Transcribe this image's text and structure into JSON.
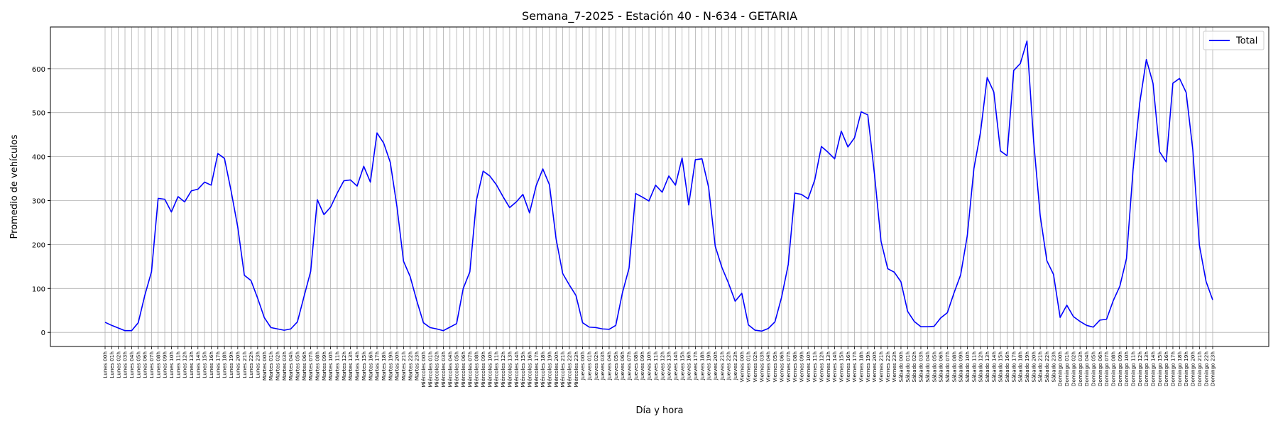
{
  "chart_data": {
    "type": "line",
    "title": "Semana_7-2025 - Estación 40 - N-634  - GETARIA",
    "xlabel": "Día y hora",
    "ylabel": "Promedio de vehículos",
    "ylim": [
      -32,
      695
    ],
    "yticks": [
      0,
      100,
      200,
      300,
      400,
      500,
      600
    ],
    "grid": true,
    "legend_position": "top-right",
    "categories": [
      "Lunes 00h",
      "Lunes 01h",
      "Lunes 02h",
      "Lunes 03h",
      "Lunes 04h",
      "Lunes 05h",
      "Lunes 06h",
      "Lunes 07h",
      "Lunes 08h",
      "Lunes 09h",
      "Lunes 10h",
      "Lunes 11h",
      "Lunes 12h",
      "Lunes 13h",
      "Lunes 14h",
      "Lunes 15h",
      "Lunes 16h",
      "Lunes 17h",
      "Lunes 18h",
      "Lunes 19h",
      "Lunes 20h",
      "Lunes 21h",
      "Lunes 22h",
      "Lunes 23h",
      "Martes 00h",
      "Martes 01h",
      "Martes 02h",
      "Martes 03h",
      "Martes 04h",
      "Martes 05h",
      "Martes 06h",
      "Martes 07h",
      "Martes 08h",
      "Martes 09h",
      "Martes 10h",
      "Martes 11h",
      "Martes 12h",
      "Martes 13h",
      "Martes 14h",
      "Martes 15h",
      "Martes 16h",
      "Martes 17h",
      "Martes 18h",
      "Martes 19h",
      "Martes 20h",
      "Martes 21h",
      "Martes 22h",
      "Martes 23h",
      "Miércoles 00h",
      "Miércoles 01h",
      "Miércoles 02h",
      "Miércoles 03h",
      "Miércoles 04h",
      "Miércoles 05h",
      "Miércoles 06h",
      "Miércoles 07h",
      "Miércoles 08h",
      "Miércoles 09h",
      "Miércoles 10h",
      "Miércoles 11h",
      "Miércoles 12h",
      "Miércoles 13h",
      "Miércoles 14h",
      "Miércoles 15h",
      "Miércoles 16h",
      "Miércoles 17h",
      "Miércoles 18h",
      "Miércoles 19h",
      "Miércoles 20h",
      "Miércoles 21h",
      "Miércoles 22h",
      "Miércoles 23h",
      "Jueves 00h",
      "Jueves 01h",
      "Jueves 02h",
      "Jueves 03h",
      "Jueves 04h",
      "Jueves 05h",
      "Jueves 06h",
      "Jueves 07h",
      "Jueves 08h",
      "Jueves 09h",
      "Jueves 10h",
      "Jueves 11h",
      "Jueves 12h",
      "Jueves 13h",
      "Jueves 14h",
      "Jueves 15h",
      "Jueves 16h",
      "Jueves 17h",
      "Jueves 18h",
      "Jueves 19h",
      "Jueves 20h",
      "Jueves 21h",
      "Jueves 22h",
      "Jueves 23h",
      "Viernes 00h",
      "Viernes 01h",
      "Viernes 02h",
      "Viernes 03h",
      "Viernes 04h",
      "Viernes 05h",
      "Viernes 06h",
      "Viernes 07h",
      "Viernes 08h",
      "Viernes 09h",
      "Viernes 10h",
      "Viernes 11h",
      "Viernes 12h",
      "Viernes 13h",
      "Viernes 14h",
      "Viernes 15h",
      "Viernes 16h",
      "Viernes 17h",
      "Viernes 18h",
      "Viernes 19h",
      "Viernes 20h",
      "Viernes 21h",
      "Viernes 22h",
      "Viernes 23h",
      "Sábado 00h",
      "Sábado 01h",
      "Sábado 02h",
      "Sábado 03h",
      "Sábado 04h",
      "Sábado 05h",
      "Sábado 06h",
      "Sábado 07h",
      "Sábado 08h",
      "Sábado 09h",
      "Sábado 10h",
      "Sábado 11h",
      "Sábado 12h",
      "Sábado 13h",
      "Sábado 14h",
      "Sábado 15h",
      "Sábado 16h",
      "Sábado 17h",
      "Sábado 18h",
      "Sábado 19h",
      "Sábado 20h",
      "Sábado 21h",
      "Sábado 22h",
      "Sábado 23h",
      "Domingo 00h",
      "Domingo 01h",
      "Domingo 02h",
      "Domingo 03h",
      "Domingo 04h",
      "Domingo 05h",
      "Domingo 06h",
      "Domingo 07h",
      "Domingo 08h",
      "Domingo 09h",
      "Domingo 10h",
      "Domingo 11h",
      "Domingo 12h",
      "Domingo 13h",
      "Domingo 14h",
      "Domingo 15h",
      "Domingo 16h",
      "Domingo 17h",
      "Domingo 18h",
      "Domingo 19h",
      "Domingo 20h",
      "Domingo 21h",
      "Domingo 22h",
      "Domingo 23h"
    ],
    "series": [
      {
        "name": "Total",
        "color": "#0000ff",
        "values": [
          23,
          16,
          10,
          4,
          4,
          22,
          85,
          138,
          305,
          303,
          274,
          309,
          297,
          322,
          326,
          342,
          335,
          407,
          396,
          322,
          240,
          130,
          118,
          78,
          34,
          11,
          8,
          5,
          8,
          24,
          82,
          139,
          302,
          268,
          285,
          317,
          345,
          347,
          333,
          378,
          342,
          454,
          431,
          387,
          287,
          162,
          127,
          72,
          22,
          11,
          8,
          4,
          12,
          20,
          100,
          138,
          301,
          367,
          356,
          336,
          309,
          284,
          297,
          314,
          272,
          334,
          372,
          336,
          213,
          134,
          108,
          84,
          22,
          12,
          11,
          8,
          7,
          16,
          90,
          146,
          316,
          308,
          299,
          335,
          319,
          356,
          335,
          397,
          290,
          393,
          395,
          330,
          196,
          148,
          112,
          71,
          89,
          17,
          5,
          3,
          9,
          24,
          80,
          154,
          317,
          314,
          304,
          347,
          423,
          410,
          395,
          458,
          422,
          443,
          502,
          495,
          361,
          207,
          145,
          137,
          115,
          48,
          25,
          13,
          13,
          14,
          33,
          45,
          90,
          131,
          220,
          373,
          456,
          580,
          547,
          413,
          402,
          596,
          612,
          663,
          436,
          265,
          163,
          132,
          34,
          62,
          36,
          25,
          16,
          12,
          28,
          30,
          72,
          105,
          168,
          371,
          522,
          621,
          567,
          411,
          388,
          567,
          578,
          546,
          416,
          198,
          116,
          74
        ]
      }
    ]
  }
}
